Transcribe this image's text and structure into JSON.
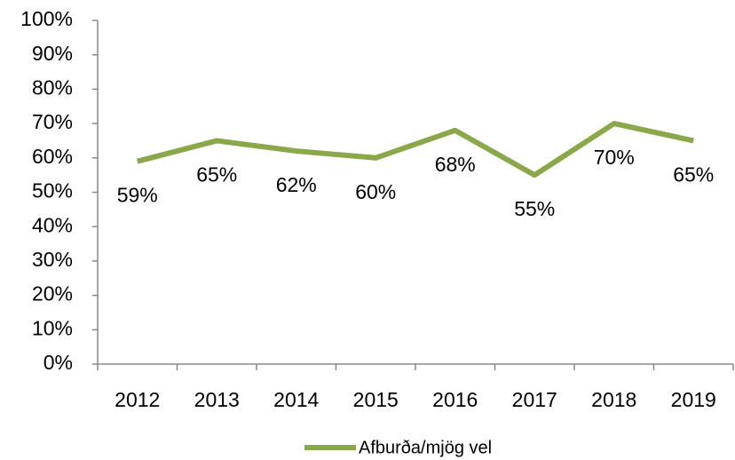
{
  "chart_data": {
    "type": "line",
    "categories": [
      "2012",
      "2013",
      "2014",
      "2015",
      "2016",
      "2017",
      "2018",
      "2019"
    ],
    "series": [
      {
        "name": "Afburða/mjög vel",
        "color": "#8aa84a",
        "values": [
          59,
          65,
          62,
          60,
          68,
          55,
          70,
          65
        ],
        "value_labels": [
          "59%",
          "65%",
          "62%",
          "60%",
          "68%",
          "55%",
          "70%",
          "65%"
        ]
      }
    ],
    "ylim": [
      0,
      100
    ],
    "yticks": [
      {
        "value": 0,
        "label": "0%"
      },
      {
        "value": 10,
        "label": "10%"
      },
      {
        "value": 20,
        "label": "20%"
      },
      {
        "value": 30,
        "label": "30%"
      },
      {
        "value": 40,
        "label": "40%"
      },
      {
        "value": 50,
        "label": "50%"
      },
      {
        "value": 60,
        "label": "60%"
      },
      {
        "value": 70,
        "label": "70%"
      },
      {
        "value": 80,
        "label": "80%"
      },
      {
        "value": 90,
        "label": "90%"
      },
      {
        "value": 100,
        "label": "100%"
      }
    ],
    "legend": "bottom"
  }
}
